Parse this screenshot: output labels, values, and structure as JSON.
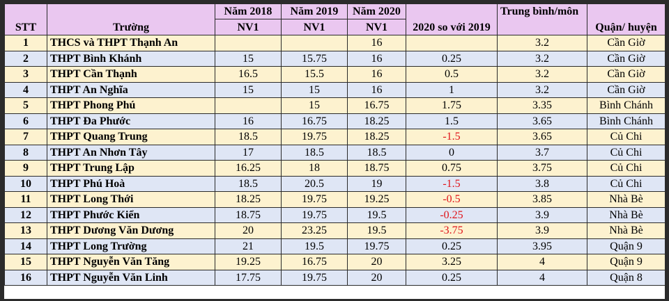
{
  "table": {
    "headers": {
      "stt": "STT",
      "truong": "Trường",
      "y2018": "Năm 2018",
      "y2019": "Năm 2019",
      "y2020": "Năm 2020",
      "nv1": "NV1",
      "compare": "2020 so với 2019",
      "avg": "Trung bình/môn",
      "district": "Quận/ huyện"
    },
    "rows": [
      {
        "stt": "1",
        "name": "THCS và THPT Thạnh An",
        "y2018": "",
        "y2019": "",
        "y2020": "16",
        "diff": "",
        "avg": "3.2",
        "district": "Cần Giờ"
      },
      {
        "stt": "2",
        "name": "THPT Bình Khánh",
        "y2018": "15",
        "y2019": "15.75",
        "y2020": "16",
        "diff": "0.25",
        "avg": "3.2",
        "district": "Cần Giờ"
      },
      {
        "stt": "3",
        "name": "THPT Cần Thạnh",
        "y2018": "16.5",
        "y2019": "15.5",
        "y2020": "16",
        "diff": "0.5",
        "avg": "3.2",
        "district": "Cần Giờ"
      },
      {
        "stt": "4",
        "name": "THPT An Nghĩa",
        "y2018": "15",
        "y2019": "15",
        "y2020": "16",
        "diff": "1",
        "avg": "3.2",
        "district": "Cần Giờ"
      },
      {
        "stt": "5",
        "name": "THPT Phong Phú",
        "y2018": "",
        "y2019": "15",
        "y2020": "16.75",
        "diff": "1.75",
        "avg": "3.35",
        "district": "Bình Chánh"
      },
      {
        "stt": "6",
        "name": "THPT Đa Phước",
        "y2018": "16",
        "y2019": "16.75",
        "y2020": "18.25",
        "diff": "1.5",
        "avg": "3.65",
        "district": "Bình Chánh"
      },
      {
        "stt": "7",
        "name": "THPT Quang Trung",
        "y2018": "18.5",
        "y2019": "19.75",
        "y2020": "18.25",
        "diff": "-1.5",
        "avg": "3.65",
        "district": "Củ Chi"
      },
      {
        "stt": "8",
        "name": "THPT An Nhơn Tây",
        "y2018": "17",
        "y2019": "18.5",
        "y2020": "18.5",
        "diff": "0",
        "avg": "3.7",
        "district": "Củ Chi"
      },
      {
        "stt": "9",
        "name": "THPT Trung Lập",
        "y2018": "16.25",
        "y2019": "18",
        "y2020": "18.75",
        "diff": "0.75",
        "avg": "3.75",
        "district": "Củ Chi"
      },
      {
        "stt": "10",
        "name": "THPT Phú Hoà",
        "y2018": "18.5",
        "y2019": "20.5",
        "y2020": "19",
        "diff": "-1.5",
        "avg": "3.8",
        "district": "Củ Chi"
      },
      {
        "stt": "11",
        "name": "THPT Long Thới",
        "y2018": "18.25",
        "y2019": "19.75",
        "y2020": "19.25",
        "diff": "-0.5",
        "avg": "3.85",
        "district": "Nhà Bè"
      },
      {
        "stt": "12",
        "name": "THPT Phước Kiển",
        "y2018": "18.75",
        "y2019": "19.75",
        "y2020": "19.5",
        "diff": "-0.25",
        "avg": "3.9",
        "district": "Nhà Bè"
      },
      {
        "stt": "13",
        "name": "THPT Dương Văn Dương",
        "y2018": "20",
        "y2019": "23.25",
        "y2020": "19.5",
        "diff": "-3.75",
        "avg": "3.9",
        "district": "Nhà Bè"
      },
      {
        "stt": "14",
        "name": "THPT Long Trường",
        "y2018": "21",
        "y2019": "19.5",
        "y2020": "19.75",
        "diff": "0.25",
        "avg": "3.95",
        "district": "Quận 9"
      },
      {
        "stt": "15",
        "name": "THPT Nguyễn Văn Tăng",
        "y2018": "19.25",
        "y2019": "16.75",
        "y2020": "20",
        "diff": "3.25",
        "avg": "4",
        "district": "Quận 9"
      },
      {
        "stt": "16",
        "name": "THPT Nguyễn Văn Linh",
        "y2018": "17.75",
        "y2019": "19.75",
        "y2020": "20",
        "diff": "0.25",
        "avg": "4",
        "district": "Quận 8"
      }
    ],
    "colors": {
      "header_bg": "#eac7f0",
      "row_yellow": "#fdf2cf",
      "row_blue": "#dfe6f5",
      "negative": "#e0141a"
    }
  }
}
